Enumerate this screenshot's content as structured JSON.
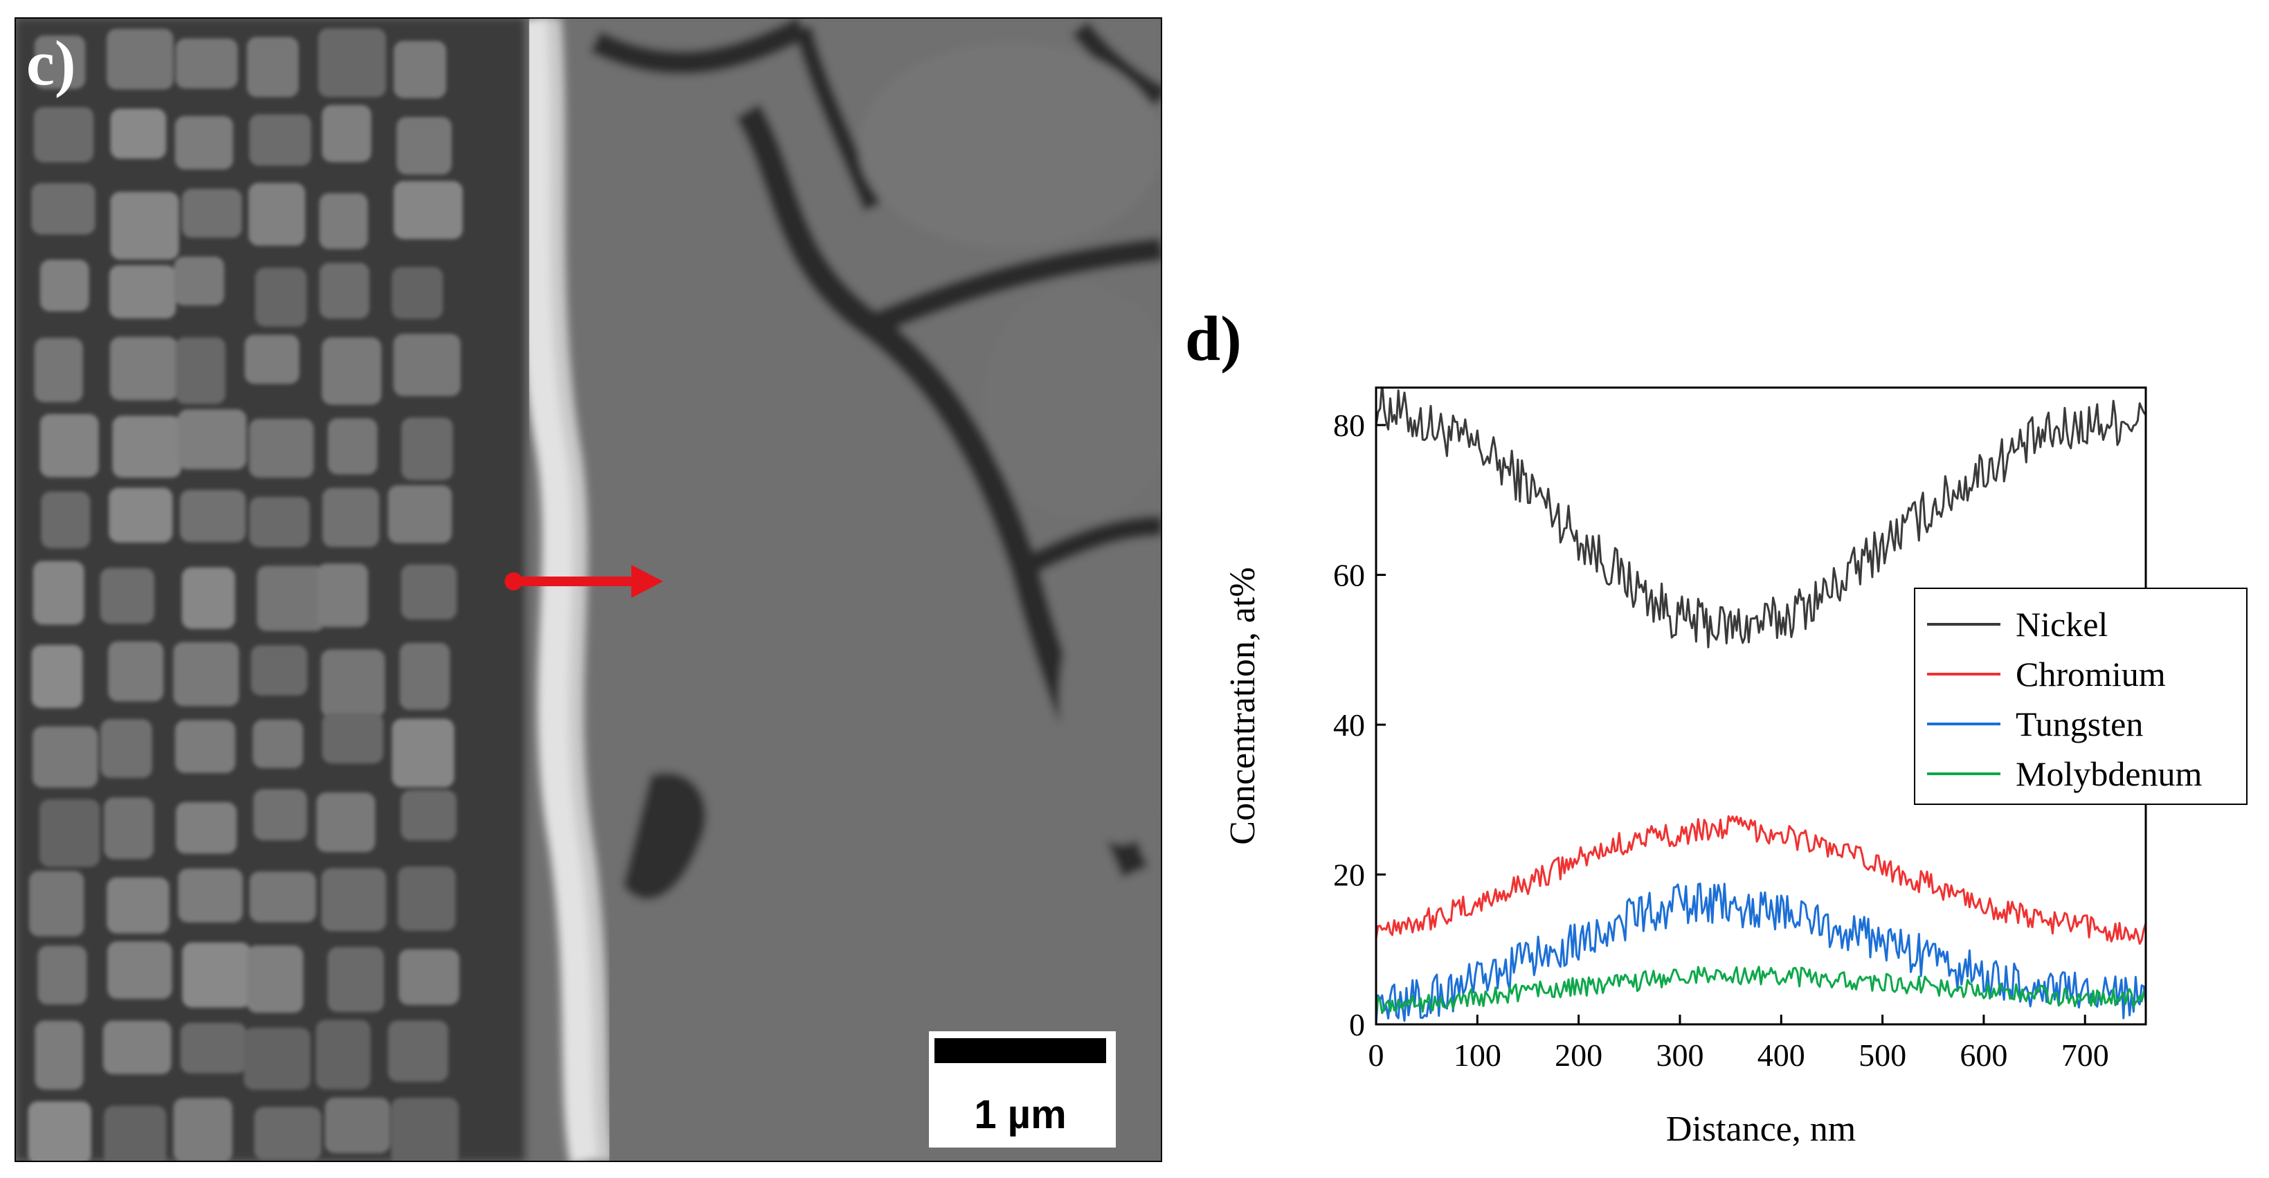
{
  "panel_c": {
    "label": "c)",
    "scale_bar_label": "1 µm",
    "arrow_color": "#e8141c"
  },
  "chart_data": {
    "type": "line",
    "panel_label": "d)",
    "title": "",
    "xlabel": "Distance, nm",
    "ylabel": "Concentration, at%",
    "xlim": [
      0,
      760
    ],
    "ylim": [
      0,
      85
    ],
    "xticks": [
      0,
      100,
      200,
      300,
      400,
      500,
      600,
      700
    ],
    "yticks": [
      0,
      20,
      40,
      60,
      80
    ],
    "legend_position": "right",
    "grid": false,
    "x": [
      0,
      50,
      100,
      150,
      200,
      250,
      300,
      350,
      400,
      450,
      500,
      550,
      600,
      650,
      700,
      760
    ],
    "series": [
      {
        "name": "Nickel",
        "color": "#3a3a3a",
        "noise": 2.0,
        "values": [
          83,
          80,
          77,
          72,
          65,
          59,
          54,
          53,
          54,
          58,
          64,
          69,
          74,
          78,
          80,
          81
        ]
      },
      {
        "name": "Chromium",
        "color": "#f03232",
        "noise": 1.0,
        "values": [
          13,
          14,
          16,
          19,
          22,
          24.5,
          25.5,
          26.5,
          25.5,
          23.5,
          21,
          18.5,
          16,
          14,
          13,
          12
        ]
      },
      {
        "name": "Tungsten",
        "color": "#1c6fd6",
        "noise": 1.8,
        "values": [
          2.5,
          3.5,
          5.5,
          8.5,
          11.5,
          14,
          16,
          16,
          15,
          13,
          11,
          8.5,
          6.5,
          5,
          4,
          3.5
        ]
      },
      {
        "name": "Molybdenum",
        "color": "#0da84a",
        "noise": 0.8,
        "values": [
          2.5,
          3,
          3.5,
          4.5,
          5,
          5.5,
          6.5,
          6.5,
          6.5,
          6,
          5.5,
          5,
          4.5,
          4,
          3.5,
          3.5
        ]
      }
    ]
  }
}
